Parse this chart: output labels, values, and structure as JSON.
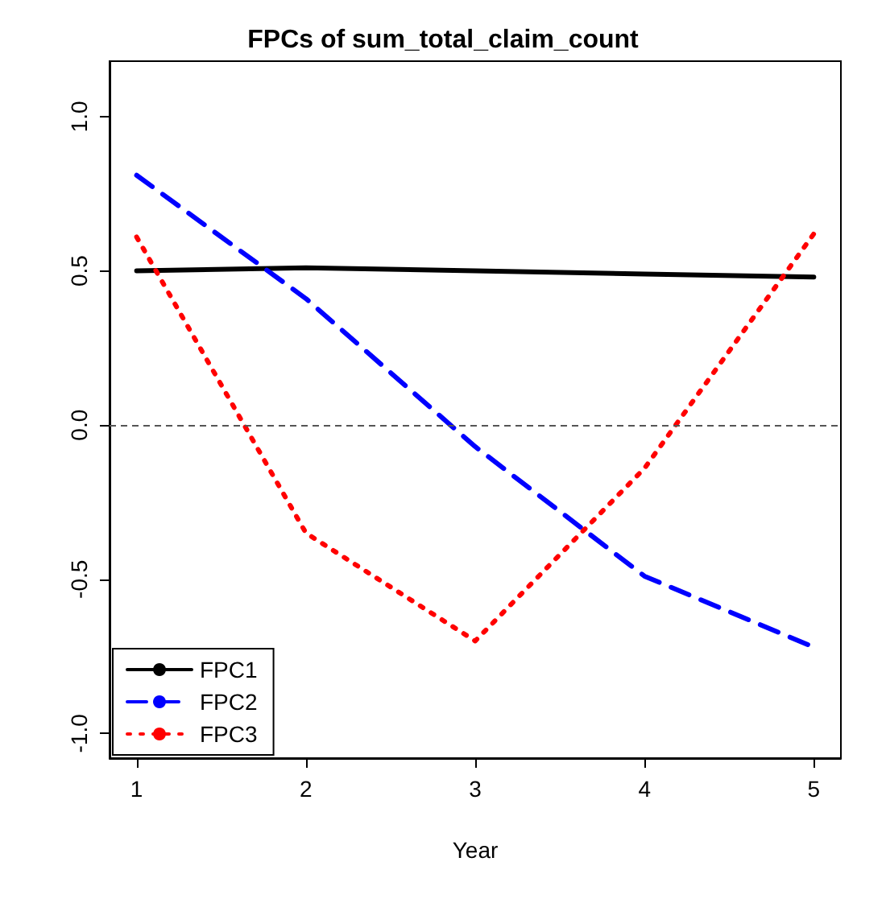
{
  "chart_data": {
    "type": "line",
    "title": "FPCs of sum_total_claim_count",
    "xlabel": "Year",
    "x": [
      1,
      2,
      3,
      4,
      5
    ],
    "series": [
      {
        "name": "FPC1",
        "color": "#000000",
        "line_style": "solid",
        "values": [
          0.5,
          0.51,
          0.5,
          0.49,
          0.48
        ]
      },
      {
        "name": "FPC2",
        "color": "#0000ff",
        "line_style": "dashed",
        "values": [
          0.81,
          0.41,
          -0.07,
          -0.49,
          -0.72
        ]
      },
      {
        "name": "FPC3",
        "color": "#ff0000",
        "line_style": "dotted",
        "values": [
          0.61,
          -0.35,
          -0.7,
          -0.14,
          0.62
        ]
      }
    ],
    "xlim": [
      0.84,
      5.16
    ],
    "xticks": [
      1,
      2,
      3,
      4,
      5
    ],
    "ylim": [
      -1.08,
      1.18
    ],
    "yticks": [
      {
        "value": -1,
        "label": "-1.0"
      },
      {
        "value": -0.5,
        "label": "-0.5"
      },
      {
        "value": 0,
        "label": "0.0"
      },
      {
        "value": 0.5,
        "label": "0.5"
      },
      {
        "value": 1,
        "label": "1.0"
      }
    ],
    "ref_lines": [
      {
        "axis": "y",
        "value": 0,
        "line_style": "dashed",
        "color": "#555555"
      }
    ],
    "grid": false,
    "legend": "bottom left",
    "marker": "none"
  }
}
